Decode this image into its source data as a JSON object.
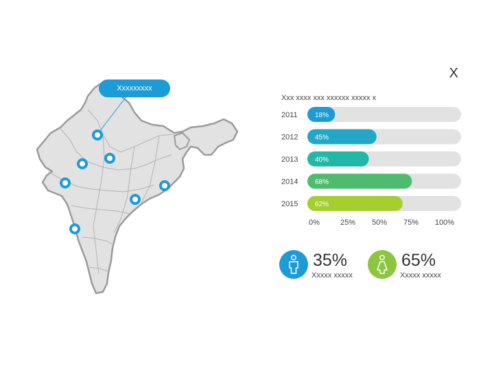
{
  "header": {
    "corner_title": "X"
  },
  "map": {
    "callout_label": "Xxxxxxxxx",
    "fill_color": "#e2e2e2",
    "border_color": "#9a9a9a",
    "marker_color": "#1d9bd7"
  },
  "chart_data": {
    "type": "bar",
    "orientation": "horizontal",
    "title": "Xxx xxxx xxx xxxxxx xxxxx x",
    "categories": [
      "2011",
      "2012",
      "2013",
      "2014",
      "2015"
    ],
    "values": [
      18,
      45,
      40,
      68,
      62
    ],
    "value_labels": [
      "18%",
      "45%",
      "40%",
      "68%",
      "62%"
    ],
    "bar_colors": [
      "#1d9bd7",
      "#22a8c6",
      "#22b8a8",
      "#4fbb6e",
      "#a4cf2e"
    ],
    "track_color": "#e2e2e2",
    "xlim": [
      0,
      100
    ],
    "xticks": [
      "0%",
      "25%",
      "50%",
      "75%",
      "100%"
    ],
    "grid": false,
    "legend": "none"
  },
  "stats": [
    {
      "value": "35%",
      "label": "Xxxxx xxxxx",
      "color": "#1d9bd7",
      "icon": "male-person-icon"
    },
    {
      "value": "65%",
      "label": "Xxxxx xxxxx",
      "color": "#8cc63f",
      "icon": "female-person-icon"
    }
  ]
}
